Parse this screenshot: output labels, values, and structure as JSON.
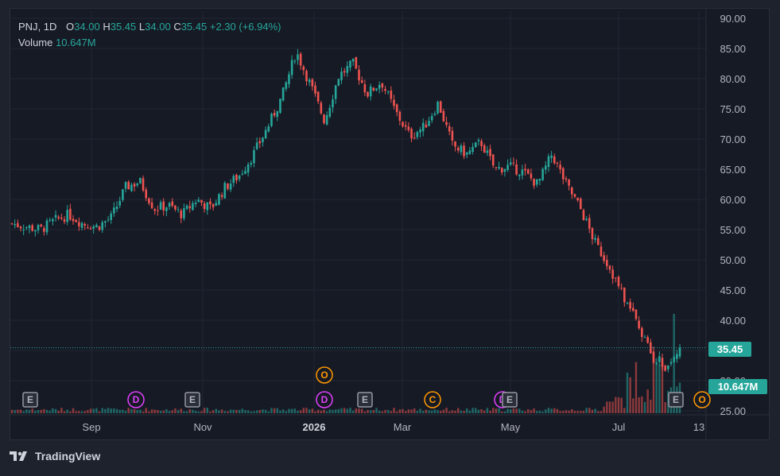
{
  "legend": {
    "symbol": "PNJ",
    "interval": "1D",
    "o_label": "O",
    "o_value": "34.00",
    "h_label": "H",
    "h_value": "35.45",
    "l_label": "L",
    "l_value": "34.00",
    "c_label": "C",
    "c_value": "35.45",
    "change": "+2.30 (+6.94%)",
    "volume_label": "Volume",
    "volume_value": "10.647M"
  },
  "price_badge": "35.45",
  "volume_badge": "10.647M",
  "brand": "TradingView",
  "colors": {
    "up": "#26a69a",
    "down": "#ef5350",
    "background": "#161a25",
    "grid": "#232632"
  },
  "chart_data": {
    "type": "candlestick",
    "y_axis_labels": [
      "90.00",
      "85.00",
      "80.00",
      "75.00",
      "70.00",
      "65.00",
      "60.00",
      "55.00",
      "50.00",
      "45.00",
      "40.00",
      "35.00",
      "30.00",
      "25.00"
    ],
    "x_axis_labels": [
      "Sep",
      "Nov",
      "2026",
      "Mar",
      "May",
      "Jul",
      "13"
    ],
    "ylim": [
      25,
      90
    ],
    "last_close": 35.45,
    "price_path": [
      [
        "Aug",
        56.0
      ],
      [
        "Aug",
        55.5
      ],
      [
        "Sep",
        55.0
      ],
      [
        "Sep",
        56.5
      ],
      [
        "Sep",
        57.5
      ],
      [
        "Oct",
        56.0
      ],
      [
        "Oct",
        55.5
      ],
      [
        "Oct",
        57.0
      ],
      [
        "Oct",
        62.0
      ],
      [
        "Nov",
        63.0
      ],
      [
        "Nov",
        58.5
      ],
      [
        "Nov",
        59.0
      ],
      [
        "Dec",
        57.5
      ],
      [
        "Dec",
        60.0
      ],
      [
        "Dec",
        58.5
      ],
      [
        "Dec",
        62.0
      ],
      [
        "Dec",
        64.0
      ],
      [
        "Dec",
        67.5
      ],
      [
        "Jan",
        72.0
      ],
      [
        "Jan",
        77.0
      ],
      [
        "Jan",
        84.5
      ],
      [
        "Feb",
        79.0
      ],
      [
        "Feb",
        73.0
      ],
      [
        "Feb",
        80.5
      ],
      [
        "Mar",
        82.5
      ],
      [
        "Mar",
        77.5
      ],
      [
        "Mar",
        79.5
      ],
      [
        "Mar",
        74.5
      ],
      [
        "Apr",
        70.5
      ],
      [
        "Apr",
        72.0
      ],
      [
        "Apr",
        76.0
      ],
      [
        "Apr",
        69.0
      ],
      [
        "May",
        67.5
      ],
      [
        "May",
        69.5
      ],
      [
        "May",
        65.0
      ],
      [
        "May",
        65.5
      ],
      [
        "Jun",
        64.5
      ],
      [
        "Jun",
        62.5
      ],
      [
        "Jun",
        67.5
      ],
      [
        "Jun",
        62.5
      ],
      [
        "Jul",
        58.5
      ],
      [
        "Jul",
        53.0
      ],
      [
        "Jul",
        49.0
      ],
      [
        "Jul",
        44.0
      ],
      [
        "Jul",
        39.5
      ],
      [
        "Jul",
        34.0
      ],
      [
        "Jul",
        32.5
      ],
      [
        "Jul",
        35.45
      ]
    ],
    "event_markers": [
      {
        "label": "E"
      },
      {
        "label": "D"
      },
      {
        "label": "E"
      },
      {
        "label": "O"
      },
      {
        "label": "D"
      },
      {
        "label": "E"
      },
      {
        "label": "C"
      },
      {
        "label": "E"
      },
      {
        "label": "E"
      },
      {
        "label": "O"
      }
    ]
  }
}
